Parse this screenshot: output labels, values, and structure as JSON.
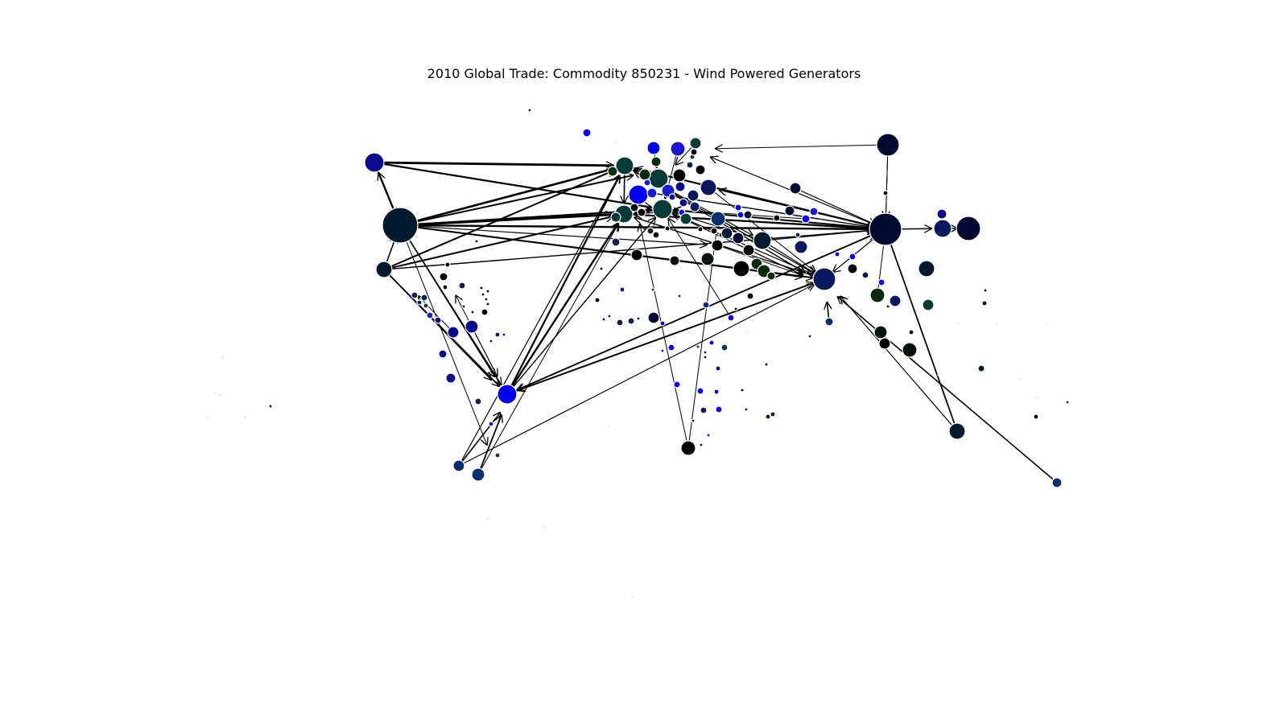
{
  "title": "2010 Global Trade: Commodity 850231 - Wind Powered Generators",
  "colors": {
    "background": "#ffffff",
    "edge": "#000000",
    "node_stroke": "#ffffff",
    "node_palette": [
      "#001a2e",
      "#000a2e",
      "#0a0a8c",
      "#0000ee",
      "#1a1acc",
      "#08244a",
      "#0b1a5c",
      "#083a3a",
      "#0a2a0a",
      "#05140a",
      "#000000",
      "#0b2f6e",
      "#1e3cb4"
    ]
  }
}
